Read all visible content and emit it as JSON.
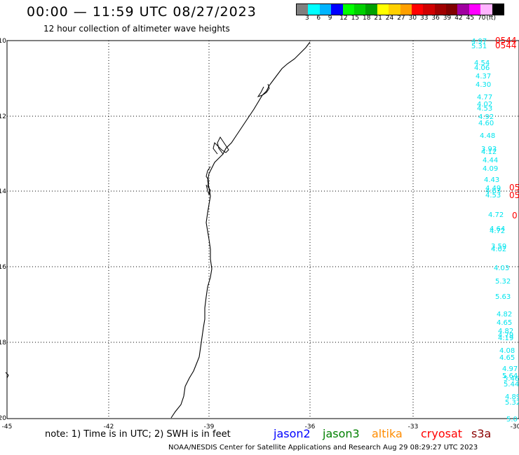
{
  "header": {
    "title": "00:00 — 11:59 UTC 08/27/2023",
    "subtitle": "12 hour collection of altimeter wave heights"
  },
  "colorbar": {
    "colors": [
      "#808080",
      "#00ffff",
      "#00b4ff",
      "#0000ff",
      "#00ff00",
      "#00d000",
      "#00a000",
      "#ffff00",
      "#ffd000",
      "#ffa000",
      "#ff0000",
      "#d00000",
      "#a00000",
      "#800000",
      "#a000a0",
      "#ff00ff",
      "#ffb4ff",
      "#000000"
    ],
    "labels": [
      "3",
      "6",
      "9",
      "12",
      "15",
      "18",
      "21",
      "24",
      "27",
      "30",
      "33",
      "36",
      "39",
      "42",
      "45",
      "70",
      "(ft)"
    ]
  },
  "map": {
    "lat_labels": [
      "-10",
      "-12",
      "-14",
      "-16",
      "-18",
      "-20"
    ],
    "lon_labels": [
      "-45",
      "-42",
      "-39",
      "-36",
      "-33",
      "-30"
    ]
  },
  "swh_values": [
    {
      "text": "4.97",
      "color": "#00e5ee"
    },
    {
      "text": "5.31",
      "color": "#00e5ee"
    },
    {
      "text": "0544",
      "color": "#ff0000"
    },
    {
      "text": "0544",
      "color": "#ff0000"
    },
    {
      "text": "4.54",
      "color": "#00e5ee"
    },
    {
      "text": "4.06",
      "color": "#00e5ee"
    },
    {
      "text": "4.37",
      "color": "#00e5ee"
    },
    {
      "text": "4.30",
      "color": "#00e5ee"
    },
    {
      "text": "4.77",
      "color": "#00e5ee"
    },
    {
      "text": "4.02",
      "color": "#00e5ee"
    },
    {
      "text": "4.53",
      "color": "#00e5ee"
    },
    {
      "text": "4.92",
      "color": "#00e5ee"
    },
    {
      "text": "4.60",
      "color": "#00e5ee"
    },
    {
      "text": "4.48",
      "color": "#00e5ee"
    },
    {
      "text": "3.93",
      "color": "#00e5ee"
    },
    {
      "text": "4.12",
      "color": "#00e5ee"
    },
    {
      "text": "4.44",
      "color": "#00e5ee"
    },
    {
      "text": "4.09",
      "color": "#00e5ee"
    },
    {
      "text": "4.43",
      "color": "#00e5ee"
    },
    {
      "text": "4.49",
      "color": "#00e5ee"
    },
    {
      "text": "4.63",
      "color": "#00e5ee"
    },
    {
      "text": "4.53",
      "color": "#00e5ee"
    },
    {
      "text": "05",
      "color": "#ff0000"
    },
    {
      "text": "05",
      "color": "#ff0000"
    },
    {
      "text": "4.72",
      "color": "#00e5ee"
    },
    {
      "text": "0",
      "color": "#ff0000"
    },
    {
      "text": "4.64",
      "color": "#00e5ee"
    },
    {
      "text": "4.72",
      "color": "#00e5ee"
    },
    {
      "text": "3.59",
      "color": "#00e5ee"
    },
    {
      "text": "4.02",
      "color": "#00e5ee"
    },
    {
      "text": "4.03",
      "color": "#00e5ee"
    },
    {
      "text": "5.32",
      "color": "#00e5ee"
    },
    {
      "text": "5.63",
      "color": "#00e5ee"
    },
    {
      "text": "4.82",
      "color": "#00e5ee"
    },
    {
      "text": "4.65",
      "color": "#00e5ee"
    },
    {
      "text": "4.82",
      "color": "#00e5ee"
    },
    {
      "text": "4.79",
      "color": "#00e5ee"
    },
    {
      "text": "4.19",
      "color": "#00e5ee"
    },
    {
      "text": "4.08",
      "color": "#00e5ee"
    },
    {
      "text": "4.65",
      "color": "#00e5ee"
    },
    {
      "text": "4.97",
      "color": "#00e5ee"
    },
    {
      "text": "5.64",
      "color": "#00e5ee"
    },
    {
      "text": "5.46",
      "color": "#00e5ee"
    },
    {
      "text": "5.44",
      "color": "#00e5ee"
    },
    {
      "text": "4.89",
      "color": "#00e5ee"
    },
    {
      "text": "5.32",
      "color": "#00e5ee"
    },
    {
      "text": "5.0",
      "color": "#00e5ee"
    }
  ],
  "footer": {
    "note": "note: 1) Time is in UTC; 2) SWH is in feet",
    "legend": [
      {
        "label": "jason2",
        "color": "#0000ff"
      },
      {
        "label": "jason3",
        "color": "#008000"
      },
      {
        "label": "altika",
        "color": "#ff8c00"
      },
      {
        "label": "cryosat",
        "color": "#ff0000"
      },
      {
        "label": "s3a",
        "color": "#8b0000"
      }
    ],
    "credit": "NOAA/NESDIS Center for Satellite Applications and Research     Aug 29 08:29:27 UTC 2023"
  }
}
